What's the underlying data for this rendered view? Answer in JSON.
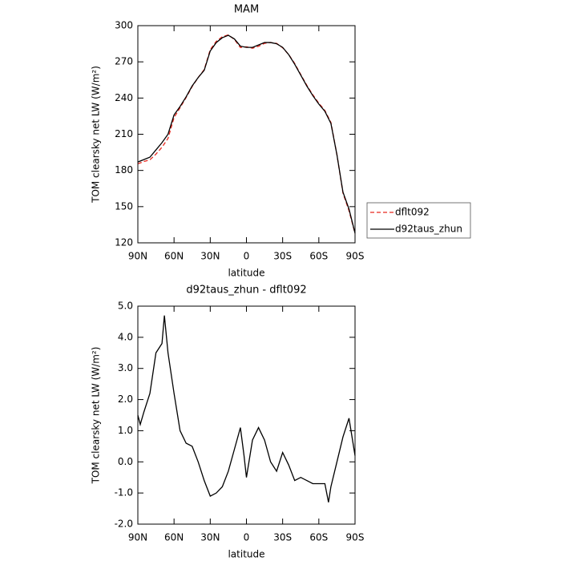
{
  "chart_data": [
    {
      "type": "line",
      "title": "MAM",
      "xlabel": "latitude",
      "ylabel": "TOM clearsky net LW (W/m²)",
      "x": [
        90,
        85,
        80,
        75,
        70,
        65,
        60,
        55,
        50,
        45,
        40,
        35,
        30,
        25,
        20,
        15,
        10,
        5,
        0,
        -5,
        -10,
        -15,
        -20,
        -25,
        -30,
        -35,
        -40,
        -45,
        -50,
        -55,
        -60,
        -65,
        -70,
        -75,
        -80,
        -85,
        -90
      ],
      "series": [
        {
          "name": "dflt092",
          "color": "#e8281e",
          "dash": true,
          "values": [
            185.5,
            187.4,
            188.8,
            193.5,
            199.2,
            206.5,
            223.8,
            232,
            240.4,
            249.5,
            257,
            263.6,
            280.1,
            287,
            290.8,
            292.3,
            288.6,
            281.9,
            282.5,
            281.3,
            282.9,
            285.3,
            286,
            285.3,
            281.7,
            276.1,
            268.6,
            259.5,
            250.6,
            242.7,
            235.7,
            229.7,
            219.8,
            193,
            161.2,
            146.6,
            127.8
          ]
        },
        {
          "name": "d92taus_zhun",
          "color": "#000000",
          "dash": false,
          "values": [
            187,
            189,
            191,
            197,
            203,
            210,
            226,
            233,
            241,
            250,
            257,
            263,
            279,
            286,
            290,
            292,
            289,
            283,
            282,
            282,
            284,
            286,
            286,
            285,
            282,
            276,
            268,
            259,
            250,
            242,
            235,
            229,
            219,
            193,
            162,
            148,
            128
          ]
        }
      ],
      "xlim": [
        90,
        -90
      ],
      "xticks": [
        {
          "value": 90,
          "label": "90N"
        },
        {
          "value": 60,
          "label": "60N"
        },
        {
          "value": 30,
          "label": "30N"
        },
        0,
        {
          "value": -30,
          "label": "30S"
        },
        {
          "value": -60,
          "label": "60S"
        },
        {
          "value": -90,
          "label": "90S"
        }
      ],
      "ylim": [
        120,
        300
      ],
      "yticks": [
        120,
        150,
        180,
        210,
        240,
        270,
        300
      ],
      "legend": "right"
    },
    {
      "type": "line",
      "title": "d92taus_zhun - dflt092",
      "xlabel": "latitude",
      "ylabel": "TOM clearsky net LW (W/m²)",
      "x": [
        90,
        88,
        85,
        80,
        75,
        70,
        68,
        65,
        60,
        55,
        50,
        45,
        40,
        35,
        30,
        25,
        20,
        15,
        10,
        5,
        2,
        0,
        -5,
        -10,
        -15,
        -20,
        -25,
        -30,
        -35,
        -40,
        -45,
        -50,
        -55,
        -60,
        -65,
        -68,
        -70,
        -75,
        -80,
        -85,
        -90
      ],
      "series": [
        {
          "color": "#000000",
          "dash": false,
          "values": [
            1.5,
            1.2,
            1.6,
            2.2,
            3.5,
            3.8,
            4.7,
            3.5,
            2.2,
            1.0,
            0.6,
            0.5,
            0.0,
            -0.6,
            -1.1,
            -1.0,
            -0.8,
            -0.3,
            0.4,
            1.1,
            0.2,
            -0.5,
            0.7,
            1.1,
            0.7,
            0.0,
            -0.3,
            0.3,
            -0.1,
            -0.6,
            -0.5,
            -0.6,
            -0.7,
            -0.7,
            -0.7,
            -1.3,
            -0.8,
            0.0,
            0.8,
            1.4,
            0.2
          ]
        }
      ],
      "xlim": [
        90,
        -90
      ],
      "xticks": [
        {
          "value": 90,
          "label": "90N"
        },
        {
          "value": 60,
          "label": "60N"
        },
        {
          "value": 30,
          "label": "30N"
        },
        0,
        {
          "value": -30,
          "label": "30S"
        },
        {
          "value": -60,
          "label": "60S"
        },
        {
          "value": -90,
          "label": "90S"
        }
      ],
      "ylim": [
        -2,
        5
      ],
      "yticks": [
        {
          "value": -2,
          "label": "-2.0"
        },
        {
          "value": -1,
          "label": "-1.0"
        },
        {
          "value": 0,
          "label": "0.0"
        },
        {
          "value": 1,
          "label": "1.0"
        },
        {
          "value": 2,
          "label": "2.0"
        },
        {
          "value": 3,
          "label": "3.0"
        },
        {
          "value": 4,
          "label": "4.0"
        },
        {
          "value": 5,
          "label": "5.0"
        }
      ]
    }
  ]
}
